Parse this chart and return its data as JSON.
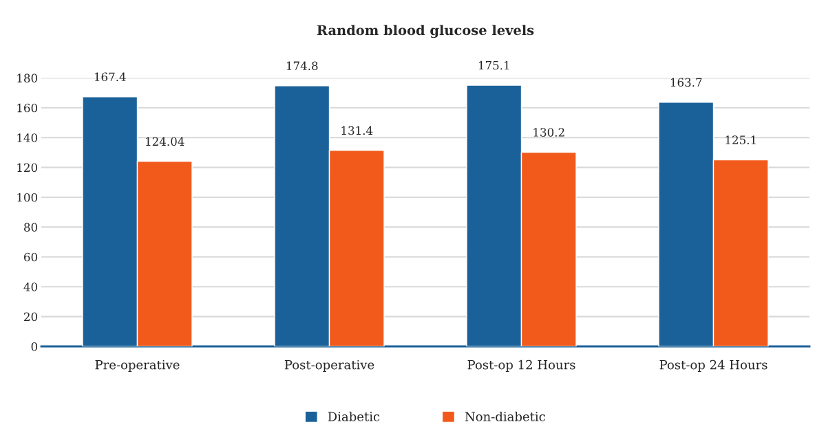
{
  "chart_data": {
    "type": "bar",
    "title": "Random blood glucose levels",
    "categories": [
      "Pre-operative",
      "Post-operative",
      "Post-op 12 Hours",
      "Post-op 24 Hours"
    ],
    "series": [
      {
        "name": "Diabetic",
        "color": "#1b6199",
        "values": [
          167.4,
          174.8,
          175.1,
          163.7
        ]
      },
      {
        "name": "Non-diabetic",
        "color": "#f15a1b",
        "values": [
          124.04,
          131.4,
          130.2,
          125.1
        ]
      }
    ],
    "ylim": [
      0,
      180
    ],
    "yticks": [
      0,
      20,
      40,
      60,
      80,
      100,
      120,
      140,
      160,
      180
    ],
    "grid": "y",
    "legend": "bottom",
    "data_labels": true
  }
}
